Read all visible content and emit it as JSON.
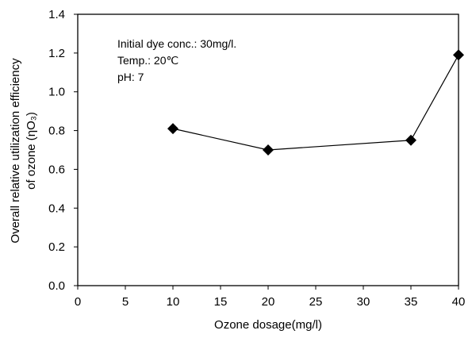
{
  "chart_data": {
    "type": "line",
    "title": "",
    "xlabel": "Ozone dosage(mg/l)",
    "ylabel_line1": "Overall relative utilization efficiency",
    "ylabel_line2": "of ozone (ηO₃)",
    "xlim": [
      0,
      40
    ],
    "ylim": [
      0,
      1.4
    ],
    "x_ticks": [
      "0",
      "5",
      "10",
      "15",
      "20",
      "25",
      "30",
      "35",
      "40"
    ],
    "y_ticks": [
      "0.0",
      "0.2",
      "0.4",
      "0.6",
      "0.8",
      "1.0",
      "1.2",
      "1.4"
    ],
    "grid": false,
    "marker": "diamond",
    "series": [
      {
        "x": [
          10,
          20,
          35,
          40
        ],
        "y": [
          0.81,
          0.7,
          0.75,
          1.19
        ]
      }
    ],
    "annotations": [
      "Initial dye conc.: 30mg/l.",
      "Temp.: 20℃",
      "pH: 7"
    ]
  }
}
